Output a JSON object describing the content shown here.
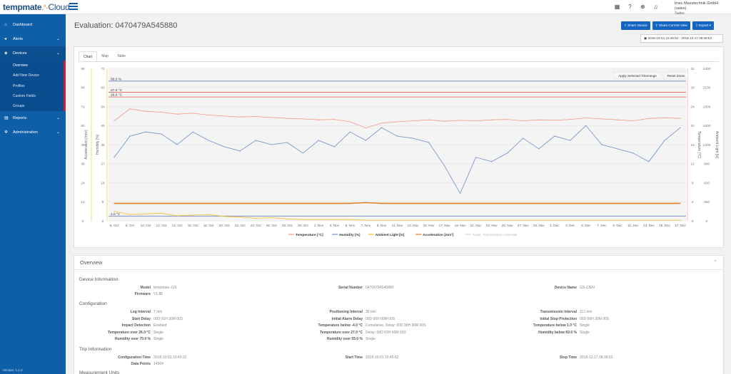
{
  "app": {
    "brand": "tempmate",
    "brand_suffix": "Cloud",
    "user_name": "imec Messtechnik GmbH (sales)",
    "user_role": "Sales",
    "version": "Version: 1.1.0"
  },
  "sidebar": {
    "items": [
      {
        "label": "Dashboard",
        "icon": "home-icon"
      },
      {
        "label": "Alerts",
        "icon": "megaphone-icon"
      },
      {
        "label": "Devices",
        "icon": "cube-icon"
      },
      {
        "label": "Reports",
        "icon": "file-icon"
      },
      {
        "label": "Administration",
        "icon": "gear-icon"
      }
    ],
    "devices_sub": [
      "Overview",
      "Add New Device",
      "Profiles",
      "Custom Fields",
      "Groups"
    ]
  },
  "header": {
    "title": "Evaluation: 0470479A545880",
    "buttons": [
      "Share Device",
      "Share Current View",
      "Export"
    ],
    "date_range": "2018-10-01 15:45:52 - 2018-12-17 08:38:53"
  },
  "tabs": [
    "Chart",
    "Map",
    "Table"
  ],
  "chart_buttons": [
    "Apply Selected Timerange",
    "Reset Zoom"
  ],
  "chart_data": {
    "type": "line",
    "x": [
      "6. Oct",
      "8. Oct",
      "10. Oct",
      "12. Oct",
      "14. Oct",
      "16. Oct",
      "18. Oct",
      "20. Oct",
      "22. Oct",
      "24. Oct",
      "26. Oct",
      "28. Oct",
      "30. Oct",
      "1. Nov",
      "3. Nov",
      "5. Nov",
      "7. Nov",
      "9. Nov",
      "11. Nov",
      "13. Nov",
      "15. Nov",
      "17. Nov",
      "19. Nov",
      "21. Nov",
      "23. Nov",
      "25. Nov",
      "27. Nov",
      "29. Nov",
      "1. Dec",
      "3. Dec",
      "5. Dec",
      "7. Dec",
      "9. Dec",
      "11. Dec",
      "13. Dec",
      "15. Dec",
      "17. Dec"
    ],
    "yaxis_acceleration": {
      "label": "Acceleration [m/s²]",
      "ticks": [
        0,
        12,
        24,
        36,
        48,
        60,
        72,
        84,
        96
      ]
    },
    "yaxis_humidity": {
      "label": "Humidity [%]",
      "ticks": [
        0,
        9,
        18,
        27,
        36,
        45,
        54,
        63,
        72
      ]
    },
    "yaxis_temperature": {
      "label": "Temperature [°C]",
      "ticks": [
        0,
        4,
        8,
        12,
        16,
        20,
        24,
        28,
        32
      ]
    },
    "yaxis_light": {
      "label": "Ambient Light [lx]",
      "ticks": [
        0,
        300,
        600,
        900,
        1200,
        1500,
        1800,
        2100,
        2400
      ]
    },
    "thresholds": [
      {
        "label": "27.0 °C",
        "value": 27.0,
        "axis": "temperature",
        "color": "#e05a4e"
      },
      {
        "label": "26.0 °C",
        "value": 26.0,
        "axis": "temperature",
        "color": "#e05a4e"
      },
      {
        "label": "66.0 %",
        "value": 66.0,
        "axis": "humidity",
        "color": "#6f7fbf"
      },
      {
        "label": "1.0 °C",
        "value": 1.0,
        "axis": "temperature",
        "color": "#6f7fbf"
      }
    ],
    "series": [
      {
        "name": "Temperature [°C]",
        "color": "#f29a86",
        "values": [
          21,
          23.5,
          23,
          22.8,
          22.4,
          22.6,
          22.2,
          22,
          21.8,
          21.9,
          21.7,
          21.5,
          21.4,
          21.2,
          21.3,
          20.8,
          19.5,
          20.5,
          20.8,
          21,
          21.2,
          20.9,
          21.1,
          21,
          21.2,
          21.3,
          21,
          21.2,
          21.1,
          21.3,
          21.6,
          21.4,
          21.2,
          21,
          21.5,
          21.6,
          21.5
        ]
      },
      {
        "name": "Humidity [%]",
        "color": "#6b8fc4",
        "values": [
          30,
          40,
          42,
          41,
          36,
          42,
          38,
          35,
          33,
          38,
          36,
          37,
          32,
          38,
          35,
          42,
          38,
          44,
          40,
          39,
          37,
          26,
          13,
          30,
          28,
          32,
          39,
          34,
          40,
          38,
          45,
          36,
          34,
          32,
          28,
          38,
          44
        ]
      },
      {
        "name": "Ambient Light [lx]",
        "color": "#f2c12e",
        "values": [
          150,
          100,
          110,
          120,
          80,
          90,
          100,
          70,
          60,
          40,
          50,
          30,
          20,
          20,
          20,
          20,
          10,
          10,
          10,
          10,
          10,
          10,
          10,
          10,
          10,
          10,
          10,
          10,
          10,
          10,
          10,
          10,
          10,
          10,
          10,
          10,
          10
        ]
      },
      {
        "name": "Acceleration [m/s²]",
        "color": "#e57a1d",
        "values": [
          11,
          11,
          11,
          11,
          11,
          11,
          11,
          11,
          11,
          11,
          11,
          11,
          11,
          11,
          11,
          11,
          11.5,
          11,
          11,
          11,
          11,
          11,
          11,
          11,
          11,
          11,
          11,
          11,
          11,
          11,
          11,
          11,
          11,
          11,
          11,
          11,
          11
        ]
      }
    ],
    "legend_extra": "Trade, Transmission Intervals",
    "legend_position": "bottom"
  },
  "overview": {
    "title": "Overview",
    "sections": {
      "device_info": "Device Information",
      "configuration": "Configuration",
      "trip": "Trip Information",
      "measurement": "Measurement Units"
    },
    "device_info": [
      {
        "k": "Model",
        "v": "tempmate.-GS"
      },
      {
        "k": "Firmware",
        "v": "V1.85"
      },
      {
        "k": "Serial Number",
        "v": "0470479A545880"
      },
      {
        "k": "Device Name",
        "v": "GS-JJEN"
      }
    ],
    "config_col1": [
      {
        "k": "Log Interval",
        "v": "7 min"
      },
      {
        "k": "Start Delay",
        "v": "00D 01H 30M 00S"
      },
      {
        "k": "Impact Detection",
        "v": "Enabled"
      },
      {
        "k": "Temperature over 26.0 °C",
        "v": "Single"
      },
      {
        "k": "Humidity over 70.0 %",
        "v": "Single"
      }
    ],
    "config_col2": [
      {
        "k": "Positioning Interval",
        "v": "30 min"
      },
      {
        "k": "Initial Alarm Delay",
        "v": "00D 00H 00M 00S"
      },
      {
        "k": "Temperature below -4.0 °C",
        "v": "Cumulative, Delay: 00D 00H 30M 00S"
      },
      {
        "k": "Temperature over 27.0 °C",
        "v": "Delay: 00D 01H 00M 00S"
      },
      {
        "k": "Humidity over 55.0 %",
        "v": "Single"
      }
    ],
    "config_col3": [
      {
        "k": "Transmission Interval",
        "v": "112 min"
      },
      {
        "k": "Initial Stop Protection",
        "v": "00D 00H 30M 00S"
      },
      {
        "k": "Temperature below 1.0 °C",
        "v": "Single"
      },
      {
        "k": "Humidity below 60.0 %",
        "v": "Single"
      }
    ],
    "trip": [
      {
        "k": "Configuration Time",
        "v": "2018-10-01 13:40:32"
      },
      {
        "k": "Data Points",
        "v": "14964"
      },
      {
        "k": "Start Time",
        "v": "2018-10-01 15:45:52"
      },
      {
        "k": "Stop Time",
        "v": "2018-12-17 08:38:53"
      }
    ]
  }
}
